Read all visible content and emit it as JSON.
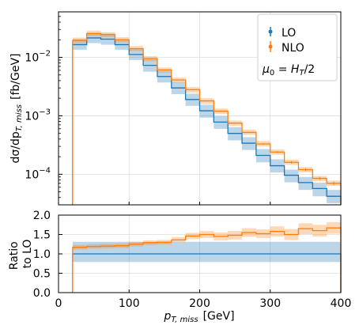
{
  "chart_data": [
    {
      "type": "line",
      "panel": "main",
      "ylabel": "dσ/dp",
      "ylabel_sub": "T, miss",
      "ylabel_unit": "[fb/GeV]",
      "yscale": "log",
      "ylim": [
        3e-05,
        0.06
      ],
      "xlim": [
        0,
        400
      ],
      "yticks": [
        {
          "value": 0.01,
          "base": "10",
          "exp": "−2"
        },
        {
          "value": 0.001,
          "base": "10",
          "exp": "−3"
        },
        {
          "value": 0.0001,
          "base": "10",
          "exp": "−4"
        }
      ],
      "grid": true,
      "x_edges": [
        20,
        40,
        60,
        80,
        100,
        120,
        140,
        160,
        180,
        200,
        220,
        240,
        260,
        280,
        300,
        320,
        340,
        360,
        380,
        400
      ],
      "series": [
        {
          "name": "LO",
          "color": "#1f77b4",
          "values": [
            0.0165,
            0.0215,
            0.0205,
            0.0165,
            0.0112,
            0.0073,
            0.0047,
            0.003,
            0.0019,
            0.00122,
            0.00078,
            0.0005,
            0.00034,
            0.00021,
            0.00014,
            9.6e-05,
            7.2e-05,
            5.7e-05,
            4.2e-05
          ],
          "band_lo": [
            0.0135,
            0.0175,
            0.0165,
            0.0135,
            0.009,
            0.0057,
            0.0037,
            0.00235,
            0.00148,
            0.00093,
            0.0006,
            0.00038,
            0.00026,
            0.00016,
            0.000107,
            7.3e-05,
            5.4e-05,
            4.2e-05,
            3.2e-05
          ],
          "band_hi": [
            0.0205,
            0.0265,
            0.0255,
            0.0205,
            0.014,
            0.0092,
            0.0059,
            0.0038,
            0.0024,
            0.00155,
            0.00099,
            0.00064,
            0.00043,
            0.00027,
            0.00018,
            0.00012,
            9e-05,
            7.2e-05,
            5.4e-05
          ]
        },
        {
          "name": "NLO",
          "color": "#ff7f0e",
          "values": [
            0.0195,
            0.0255,
            0.0245,
            0.02,
            0.0141,
            0.0095,
            0.0061,
            0.0041,
            0.0028,
            0.0018,
            0.0012,
            0.00075,
            0.00052,
            0.00033,
            0.00024,
            0.00016,
            0.00012,
            8.5e-05,
            7e-05
          ],
          "band_lo": [
            0.0175,
            0.0228,
            0.0222,
            0.0181,
            0.0128,
            0.0086,
            0.0055,
            0.0037,
            0.0025,
            0.0016,
            0.00107,
            0.00067,
            0.00047,
            0.0003,
            0.000215,
            0.000145,
            0.000108,
            7.6e-05,
            6.3e-05
          ],
          "band_hi": [
            0.0218,
            0.0285,
            0.027,
            0.0221,
            0.0156,
            0.0105,
            0.0067,
            0.0045,
            0.0031,
            0.002,
            0.00133,
            0.00083,
            0.00058,
            0.00037,
            0.000265,
            0.000178,
            0.000133,
            9.4e-05,
            7.8e-05
          ],
          "errors": [
            0.0004,
            0.0005,
            0.0005,
            0.0004,
            0.0003,
            0.0002,
            0.00012,
            8e-05,
            6e-05,
            4e-05,
            3e-05,
            2e-05,
            1.5e-05,
            1e-05,
            9e-06,
            8e-06,
            7e-06,
            5e-06,
            5e-06
          ]
        }
      ],
      "annotation": "μ₀ = H_T/2",
      "annotation_parts": {
        "mu": "μ",
        "mu_sub": "0",
        "eq": " = H",
        "h_sub": "T",
        "tail": "/2"
      },
      "legend_placement": "top-right"
    },
    {
      "type": "line",
      "panel": "ratio",
      "xlabel": "p",
      "xlabel_sub": "T, miss",
      "xlabel_unit": "[GeV]",
      "ylabel_line1": "Ratio",
      "ylabel_line2": "to LO",
      "xlim": [
        0,
        400
      ],
      "ylim": [
        0.0,
        2.0
      ],
      "xticks": [
        "0",
        "100",
        "200",
        "300",
        "400"
      ],
      "xtick_values": [
        0,
        100,
        200,
        300,
        400
      ],
      "yticks": [
        "0.0",
        "0.5",
        "1.0",
        "1.5",
        "2.0"
      ],
      "ytick_values": [
        0,
        0.5,
        1.0,
        1.5,
        2.0
      ],
      "grid": true,
      "x_edges": [
        20,
        40,
        60,
        80,
        100,
        120,
        140,
        160,
        180,
        200,
        220,
        240,
        260,
        280,
        300,
        320,
        340,
        360,
        380,
        400
      ],
      "series": [
        {
          "name": "LO",
          "color": "#1f77b4",
          "values": [
            1.0,
            1.0,
            1.0,
            1.0,
            1.0,
            1.0,
            1.0,
            1.0,
            1.0,
            1.0,
            1.0,
            1.0,
            1.0,
            1.0,
            1.0,
            1.0,
            1.0,
            1.0,
            1.0
          ],
          "band_lo": [
            0.79,
            0.79,
            0.79,
            0.79,
            0.79,
            0.79,
            0.79,
            0.79,
            0.79,
            0.79,
            0.79,
            0.79,
            0.79,
            0.79,
            0.79,
            0.79,
            0.79,
            0.79,
            0.79
          ],
          "band_hi": [
            1.31,
            1.31,
            1.31,
            1.31,
            1.31,
            1.31,
            1.31,
            1.31,
            1.31,
            1.31,
            1.31,
            1.31,
            1.31,
            1.31,
            1.31,
            1.31,
            1.31,
            1.31,
            1.31
          ]
        },
        {
          "name": "NLO",
          "color": "#ff7f0e",
          "values": [
            1.17,
            1.19,
            1.2,
            1.21,
            1.25,
            1.29,
            1.3,
            1.36,
            1.46,
            1.5,
            1.45,
            1.48,
            1.55,
            1.52,
            1.58,
            1.5,
            1.65,
            1.6,
            1.67
          ],
          "band_lo": [
            1.11,
            1.13,
            1.14,
            1.15,
            1.19,
            1.23,
            1.24,
            1.3,
            1.38,
            1.41,
            1.35,
            1.37,
            1.44,
            1.41,
            1.45,
            1.36,
            1.51,
            1.45,
            1.52
          ],
          "band_hi": [
            1.23,
            1.25,
            1.26,
            1.27,
            1.31,
            1.35,
            1.36,
            1.43,
            1.54,
            1.59,
            1.55,
            1.59,
            1.66,
            1.63,
            1.71,
            1.64,
            1.79,
            1.75,
            1.82
          ]
        }
      ]
    }
  ]
}
